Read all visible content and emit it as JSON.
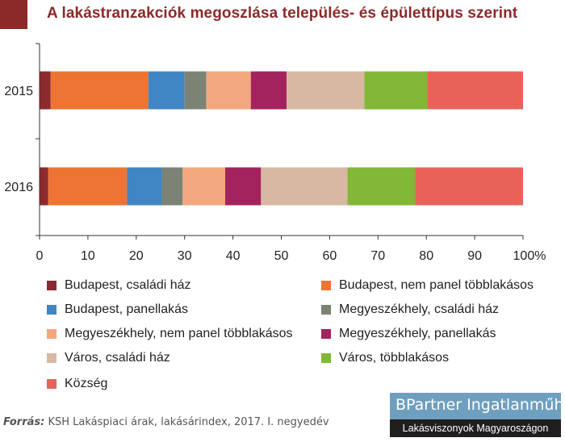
{
  "title": "A lakástranzakciók megoszlása település- és épülettípus szerint",
  "chart_data": {
    "type": "bar",
    "orientation": "horizontal",
    "stacked": true,
    "categories": [
      "2015",
      "2016"
    ],
    "xlim": [
      0,
      100
    ],
    "x_ticks": [
      "0",
      "10",
      "20",
      "30",
      "40",
      "50",
      "60",
      "70",
      "80",
      "90",
      "100%"
    ],
    "grid": false,
    "legend_position": "bottom",
    "series": [
      {
        "name": "Budapest, családi ház",
        "color": "#8b2a2f",
        "values": [
          2.3,
          1.8
        ]
      },
      {
        "name": "Budapest, nem panel többlakásos",
        "color": "#ee7433",
        "values": [
          20.2,
          16.3
        ]
      },
      {
        "name": "Budapest, panellakás",
        "color": "#3f86c3",
        "values": [
          7.5,
          7.2
        ]
      },
      {
        "name": "Megyeszékhely, családi ház",
        "color": "#7b8374",
        "values": [
          4.5,
          4.3
        ]
      },
      {
        "name": "Megyeszékhely, nem panel többlakásos",
        "color": "#f3a77f",
        "values": [
          9.2,
          8.8
        ]
      },
      {
        "name": "Megyeszékhely, panellakás",
        "color": "#a3245c",
        "values": [
          7.4,
          7.4
        ]
      },
      {
        "name": "Város, családi ház",
        "color": "#d7b8a2",
        "values": [
          16.1,
          17.9
        ]
      },
      {
        "name": "Város, többlakásos",
        "color": "#82b737",
        "values": [
          13.1,
          14.0
        ]
      },
      {
        "name": "Község",
        "color": "#e9625a",
        "values": [
          19.7,
          22.3
        ]
      }
    ]
  },
  "legend": [
    "Budapest, családi ház",
    "Budapest, nem panel többlakásos",
    "Budapest, panellakás",
    "Megyeszékhely, családi ház",
    "Megyeszékhely, nem panel többlakásos",
    "Megyeszékhely, panellakás",
    "Város, családi ház",
    "Város, többlakásos",
    "Község"
  ],
  "source": {
    "prefix": "Forrás:",
    "text": " KSH Lakáspiaci árak, lakásárindex, 2017. I. negyedév"
  },
  "brand": {
    "name": "BPartner Ingatlanműhely",
    "tagline": "Lakásviszonyok Magyaroszágon"
  }
}
